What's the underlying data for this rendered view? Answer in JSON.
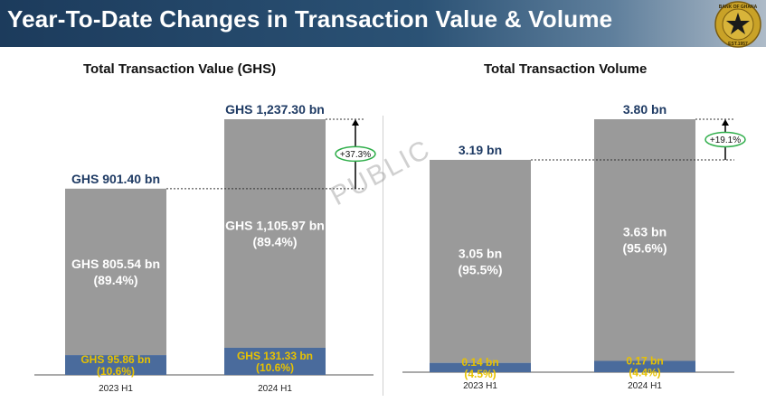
{
  "header": {
    "title": "Year-To-Date Changes in Transaction Value & Volume",
    "seal_text_top": "BANK OF GHANA",
    "seal_text_bottom": "EST.1957"
  },
  "watermark": "PUBLIC",
  "colors": {
    "total": "#9a9a9a",
    "base": "#4a6b9c",
    "title_text": "#1f3b64",
    "base_label": "#e8c200",
    "badge_border": "#2fae4a"
  },
  "chart_data": [
    {
      "type": "bar",
      "title": "Total Transaction Value (GHS)",
      "categories": [
        "2023 H1",
        "2024 H1"
      ],
      "series": [
        {
          "values": [
            95.86,
            131.33
          ]
        },
        {
          "values": [
            805.54,
            1105.97
          ]
        }
      ],
      "totals": [
        901.4,
        1237.3
      ],
      "total_labels": [
        "GHS 901.40 bn",
        "GHS 1,237.30 bn"
      ],
      "upper_labels": [
        [
          "GHS 805.54 bn",
          "(89.4%)"
        ],
        [
          "GHS 1,105.97 bn",
          "(89.4%)"
        ]
      ],
      "lower_labels": [
        [
          "GHS 95.86 bn",
          "(10.6%)"
        ],
        [
          "GHS 131.33 bn",
          "(10.6%)"
        ]
      ],
      "change_label": "+37.3%",
      "ylim": [
        0,
        1237.3
      ]
    },
    {
      "type": "bar",
      "title": "Total Transaction Volume",
      "categories": [
        "2023 H1",
        "2024 H1"
      ],
      "series": [
        {
          "values": [
            0.14,
            0.17
          ]
        },
        {
          "values": [
            3.05,
            3.63
          ]
        }
      ],
      "totals": [
        3.19,
        3.8
      ],
      "total_labels": [
        "3.19 bn",
        "3.80 bn"
      ],
      "upper_labels": [
        [
          "3.05 bn",
          "(95.5%)"
        ],
        [
          "3.63 bn",
          "(95.6%)"
        ]
      ],
      "lower_labels": [
        [
          "0.14 bn",
          "(4.5%)"
        ],
        [
          "0.17 bn",
          "(4.4%)"
        ]
      ],
      "change_label": "+19.1%",
      "ylim": [
        0,
        3.8
      ]
    }
  ]
}
